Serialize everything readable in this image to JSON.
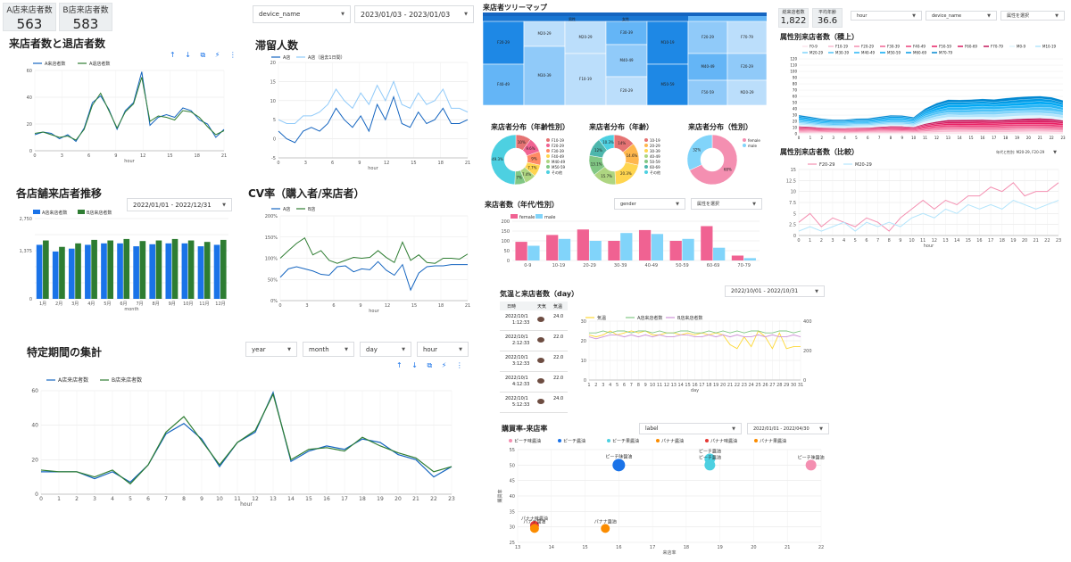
{
  "kpis": [
    {
      "label": "A店来店者数",
      "value": "563"
    },
    {
      "label": "B店来店者数",
      "value": "583"
    }
  ],
  "kpis_right": [
    {
      "label": "総来店者数",
      "value": "1,822"
    },
    {
      "label": "平均年齢",
      "value": "36.6"
    }
  ],
  "filters": {
    "device": "device_name",
    "date1": "2023/01/03 - 2023/01/03",
    "date2": "2022/01/01 - 2022/12/31",
    "year": "year",
    "month": "month",
    "day": "day",
    "hour": "hour",
    "right_hour": "hour",
    "right_device": "device_name",
    "right_attr": "属性を選択",
    "gender": "gender",
    "attr_sel": "属性を選択",
    "weather_date": "2022/10/01 - 2022/10/31",
    "label": "label",
    "buy_date": "2022/01/01 - 2022/04/30",
    "compare_sel": "年代と性別: M20-29, F20-29"
  },
  "titles": {
    "visits": "来店者数と退店者数",
    "stay": "滞留人数",
    "store_trend": "各店舗来店者推移",
    "cv": "CV率（購入者/来店者）",
    "period": "特定期間の集計",
    "treemap": "来店者ツリーマップ",
    "dist_gen": "来店者分布（年齢性別）",
    "dist_age": "来店者分布（年齢）",
    "dist_sex": "来店者分布（性別）",
    "age_sex_bar": "来店者数（年代/性別）",
    "weather": "気温と来店者数（day）",
    "buy": "購買率-来店率",
    "attr_hourly": "属性別来店者数（積上）",
    "attr_compare": "属性別来店者数（比較）"
  },
  "icons_row": "↑ ↓ ⧉ ⚡ ⋮",
  "charts": [
    {
      "id": "visits",
      "type": "line",
      "x": [
        0,
        1,
        2,
        3,
        4,
        5,
        6,
        7,
        8,
        9,
        10,
        11,
        12,
        13,
        14,
        15,
        16,
        17,
        18,
        19,
        20,
        21,
        22,
        23
      ],
      "xticks": [
        "0",
        "3",
        "6",
        "9",
        "12",
        "15",
        "18",
        "21"
      ],
      "ylim": [
        0,
        60
      ],
      "yticks": [
        "0",
        "20",
        "40",
        "60"
      ],
      "xlabel": "hour",
      "series": [
        {
          "name": "A来店者数",
          "color": "#1565c0",
          "values": [
            12,
            14,
            13,
            9,
            12,
            7,
            17,
            36,
            41,
            31,
            16,
            30,
            36,
            59,
            19,
            25,
            27,
            25,
            32,
            30,
            23,
            20,
            10,
            16
          ]
        },
        {
          "name": "A退店者数",
          "color": "#2e7d32",
          "values": [
            13,
            14,
            12,
            10,
            11,
            8,
            16,
            34,
            43,
            30,
            17,
            29,
            35,
            55,
            22,
            26,
            25,
            23,
            30,
            29,
            25,
            18,
            12,
            15
          ]
        }
      ]
    },
    {
      "id": "stay",
      "type": "line",
      "x": [
        0,
        1,
        2,
        3,
        4,
        5,
        6,
        7,
        8,
        9,
        10,
        11,
        12,
        13,
        14,
        15,
        16,
        17,
        18,
        19,
        20,
        21,
        22,
        23
      ],
      "xticks": [
        "0",
        "3",
        "6",
        "9",
        "12",
        "15",
        "18",
        "21"
      ],
      "ylim": [
        -5,
        20
      ],
      "yticks": [
        "-5",
        "0",
        "5",
        "10",
        "15",
        "20"
      ],
      "xlabel": "hour",
      "series": [
        {
          "name": "A店",
          "color": "#1565c0",
          "values": [
            2,
            0,
            -1,
            2,
            3,
            2,
            4,
            8,
            5,
            3,
            6,
            2,
            9,
            5,
            11,
            4,
            3,
            7,
            4,
            5,
            8,
            4,
            4,
            5
          ]
        },
        {
          "name": "A店（過去1日間）",
          "color": "#90caf9",
          "values": [
            5,
            4,
            4,
            6,
            6,
            7,
            9,
            13,
            10,
            8,
            12,
            9,
            14,
            10,
            15,
            9,
            8,
            12,
            9,
            10,
            13,
            8,
            8,
            7
          ]
        }
      ]
    },
    {
      "id": "store",
      "type": "bar",
      "categories": [
        "1月",
        "2月",
        "3月",
        "4月",
        "5月",
        "6月",
        "7月",
        "8月",
        "9月",
        "10月",
        "11月",
        "12月"
      ],
      "ylim": [
        0,
        2750
      ],
      "yticks": [
        "0",
        "",
        "",
        "1,375",
        "",
        "2,750"
      ],
      "xlabel": "month",
      "series": [
        {
          "name": "A店来店者数",
          "color": "#1a73e8",
          "values": [
            1850,
            1620,
            1720,
            1850,
            1900,
            1900,
            1800,
            1870,
            1900,
            1900,
            1800,
            1850
          ]
        },
        {
          "name": "B店来店者数",
          "color": "#2e7d32",
          "values": [
            2000,
            1780,
            1900,
            2020,
            2000,
            2050,
            1980,
            2000,
            2050,
            2000,
            1950,
            2020
          ]
        }
      ]
    },
    {
      "id": "cv",
      "type": "line",
      "x": [
        0,
        1,
        2,
        3,
        4,
        5,
        6,
        7,
        8,
        9,
        10,
        11,
        12,
        13,
        14,
        15,
        16,
        17,
        18,
        19,
        20,
        21,
        22,
        23
      ],
      "xticks": [
        "0",
        "3",
        "6",
        "9",
        "12",
        "15",
        "18",
        "21"
      ],
      "ylim": [
        0,
        200
      ],
      "yticks": [
        "0%",
        "50%",
        "100%",
        "150%",
        "200%"
      ],
      "xlabel": "hour",
      "series": [
        {
          "name": "A店",
          "color": "#1565c0",
          "values": [
            55,
            75,
            80,
            75,
            70,
            62,
            60,
            80,
            82,
            68,
            75,
            73,
            92,
            72,
            60,
            85,
            25,
            65,
            80,
            82,
            82,
            85,
            85,
            85
          ]
        },
        {
          "name": "B店",
          "color": "#2e7d32",
          "values": [
            100,
            118,
            135,
            148,
            108,
            118,
            95,
            88,
            95,
            102,
            100,
            102,
            118,
            102,
            90,
            138,
            95,
            108,
            90,
            88,
            100,
            100,
            98,
            110
          ]
        }
      ]
    },
    {
      "id": "period",
      "type": "line",
      "x": [
        0,
        1,
        2,
        3,
        4,
        5,
        6,
        7,
        8,
        9,
        10,
        11,
        12,
        13,
        14,
        15,
        16,
        17,
        18,
        19,
        20,
        21,
        22,
        23
      ],
      "xticks": [
        "0",
        "1",
        "2",
        "3",
        "4",
        "5",
        "6",
        "7",
        "8",
        "9",
        "10",
        "11",
        "12",
        "13",
        "14",
        "15",
        "16",
        "17",
        "18",
        "19",
        "20",
        "21",
        "22",
        "23"
      ],
      "ylim": [
        0,
        60
      ],
      "yticks": [
        "0",
        "20",
        "40",
        "60"
      ],
      "xlabel": "hour",
      "series": [
        {
          "name": "A店来店者数",
          "color": "#1565c0",
          "values": [
            13,
            13,
            13,
            9,
            13,
            7,
            17,
            35,
            41,
            32,
            16,
            30,
            36,
            59,
            19,
            25,
            28,
            26,
            32,
            30,
            23,
            20,
            10,
            16
          ]
        },
        {
          "name": "B店来店者数",
          "color": "#2e7d32",
          "values": [
            14,
            13,
            13,
            10,
            14,
            6,
            17,
            36,
            45,
            31,
            17,
            30,
            37,
            58,
            20,
            26,
            27,
            25,
            33,
            28,
            24,
            21,
            13,
            16
          ]
        }
      ]
    },
    {
      "id": "agesex",
      "type": "bar",
      "categories": [
        "0-9",
        "10-19",
        "20-29",
        "30-39",
        "40-49",
        "50-59",
        "60-69",
        "70-79"
      ],
      "ylim": [
        0,
        200
      ],
      "yticks": [
        "0",
        "50",
        "100",
        "150",
        "200"
      ],
      "xlabel": "",
      "series": [
        {
          "name": "female",
          "color": "#f06292",
          "values": [
            95,
            130,
            158,
            100,
            155,
            100,
            175,
            25
          ]
        },
        {
          "name": "male",
          "color": "#81d4fa",
          "values": [
            75,
            110,
            100,
            140,
            135,
            110,
            65,
            12
          ]
        }
      ]
    },
    {
      "id": "weather",
      "type": "line",
      "x": [
        1,
        2,
        3,
        4,
        5,
        6,
        7,
        8,
        9,
        10,
        11,
        12,
        13,
        14,
        15,
        16,
        17,
        18,
        19,
        20,
        21,
        22,
        23,
        24,
        25,
        26,
        27,
        28,
        29,
        30,
        31
      ],
      "xticks": [
        "1",
        "2",
        "3",
        "4",
        "5",
        "6",
        "7",
        "8",
        "9",
        "10",
        "11",
        "12",
        "13",
        "14",
        "15",
        "16",
        "17",
        "18",
        "19",
        "20",
        "21",
        "22",
        "23",
        "24",
        "25",
        "26",
        "27",
        "28",
        "29",
        "30",
        "31"
      ],
      "ylim": [
        0,
        30
      ],
      "yticks": [
        "0",
        "10",
        "20",
        "30"
      ],
      "xlabel": "day",
      "series": [
        {
          "name": "気温",
          "color": "#fdd835",
          "values": [
            23,
            22,
            23,
            25,
            23,
            24,
            25,
            24,
            25,
            23,
            23,
            24,
            24,
            23,
            24,
            23,
            24,
            23,
            24,
            23,
            18,
            16,
            22,
            17,
            25,
            22,
            16,
            24,
            16,
            17,
            17
          ]
        },
        {
          "name": "A店来店者数",
          "color": "#81c784",
          "values": [
            24,
            24,
            25,
            24,
            25,
            25,
            24,
            25,
            25,
            24,
            25,
            24,
            24,
            25,
            25,
            24,
            24,
            25,
            24,
            25,
            24,
            25,
            24,
            25,
            25,
            24,
            24,
            25,
            25,
            24,
            25
          ]
        },
        {
          "name": "B店来店者数",
          "color": "#ce93d8",
          "values": [
            22,
            21,
            22,
            23,
            23,
            22,
            23,
            22,
            23,
            22,
            23,
            22,
            22,
            23,
            23,
            22,
            22,
            23,
            22,
            23,
            22,
            23,
            22,
            22,
            23,
            22,
            23,
            22,
            22,
            23,
            22
          ]
        }
      ]
    },
    {
      "id": "compare",
      "type": "line",
      "x": [
        0,
        1,
        2,
        3,
        4,
        5,
        6,
        7,
        8,
        9,
        10,
        11,
        12,
        13,
        14,
        15,
        16,
        17,
        18,
        19,
        20,
        21,
        22,
        23
      ],
      "xticks": [
        "0",
        "1",
        "2",
        "3",
        "4",
        "5",
        "6",
        "7",
        "8",
        "9",
        "10",
        "11",
        "12",
        "13",
        "14",
        "15",
        "16",
        "17",
        "18",
        "19",
        "20",
        "21",
        "22",
        "23"
      ],
      "ylim": [
        0,
        15
      ],
      "yticks": [
        "0",
        "2.5",
        "5",
        "7.5",
        "10",
        "12.5",
        "15"
      ],
      "xlabel": "hour",
      "series": [
        {
          "name": "F20-29",
          "color": "#f48fb1",
          "values": [
            3,
            5,
            2,
            4,
            3,
            2,
            4,
            3,
            1,
            4,
            6,
            8,
            6,
            8,
            7,
            9,
            9,
            11,
            10,
            12,
            9,
            10,
            10,
            12
          ]
        },
        {
          "name": "M20-29",
          "color": "#b3e5fc",
          "values": [
            1,
            2,
            1,
            2,
            3,
            1,
            3,
            2,
            3,
            2,
            4,
            5,
            4,
            6,
            5,
            7,
            6,
            7,
            6,
            8,
            7,
            6,
            7,
            8
          ]
        }
      ]
    },
    {
      "id": "buy",
      "type": "scatter",
      "xlim": [
        13,
        22
      ],
      "ylim": [
        25,
        55
      ],
      "xticks": [
        "13",
        "14",
        "15",
        "16",
        "17",
        "18",
        "19",
        "20",
        "21",
        "22"
      ],
      "yticks": [
        "25",
        "30",
        "35",
        "40",
        "45",
        "50",
        "55"
      ],
      "xlabel": "来店率",
      "ylabel": "購買率",
      "points": [
        {
          "name": "ピーチ味醤油",
          "x": 16,
          "y": 50,
          "r": 7,
          "color": "#1a73e8"
        },
        {
          "name": "ピーチ醤油",
          "x": 18.7,
          "y": 52,
          "r": 6,
          "color": "#4dd0e1"
        },
        {
          "name": "ピーチ醤油",
          "x": 18.7,
          "y": 50,
          "r": 6,
          "color": "#4dd0e1"
        },
        {
          "name": "ピーチ味醤油",
          "x": 21.7,
          "y": 50,
          "r": 6,
          "color": "#f48fb1"
        },
        {
          "name": "パナナ味醤油",
          "x": 13.5,
          "y": 30.5,
          "r": 5,
          "color": "#e53935"
        },
        {
          "name": "パナナ醤油",
          "x": 13.5,
          "y": 29.5,
          "r": 5,
          "color": "#fb8c00"
        },
        {
          "name": "パナナ醤油",
          "x": 15.6,
          "y": 29.5,
          "r": 5,
          "color": "#fb8c00"
        }
      ],
      "legend": [
        "ピーチ味醤油",
        "ピーチ醤油",
        "ピーチ果醤油",
        "パナナ醤油",
        "パナナ味醤油",
        "パナナ果醤油"
      ]
    }
  ],
  "treemap": {
    "top": [
      "男性",
      "女性"
    ],
    "cells": [
      "F20-29",
      "F40-49",
      "M20-29",
      "M30-39",
      "M20-29",
      "F10-19",
      "F30-39",
      "M40-49",
      "F20-29",
      "M10-19",
      "M50-59",
      "F20-29",
      "F70-79",
      "M40-49",
      "F20-29",
      "F50-59",
      "M20-29",
      "M10-19",
      "M70-79",
      "F60-69",
      "M60-69",
      "F0-9",
      "M50-59",
      "F20-29"
    ]
  },
  "donuts": [
    {
      "title": "来店者分布（年齢性別）",
      "slices": [
        {
          "name": "F10-19",
          "v": 10,
          "color": "#e57373"
        },
        {
          "name": "F20-29",
          "v": 9.6,
          "color": "#f06292"
        },
        {
          "name": "F30-39",
          "v": 9,
          "color": "#ff8a65"
        },
        {
          "name": "F40-49",
          "v": 7.7,
          "color": "#ffd54f"
        },
        {
          "name": "M40-49",
          "v": 7.4,
          "color": "#aed581"
        },
        {
          "name": "M50-59",
          "v": 7,
          "color": "#81c784"
        },
        {
          "name": "その他",
          "v": 49.3,
          "color": "#4dd0e1"
        }
      ]
    },
    {
      "title": "来店者分布（年齢）",
      "slices": [
        {
          "name": "10-19",
          "v": 14,
          "color": "#e57373"
        },
        {
          "name": "20-29",
          "v": 14.6,
          "color": "#ffb74d"
        },
        {
          "name": "30-39",
          "v": 20.3,
          "color": "#ffd54f"
        },
        {
          "name": "40-49",
          "v": 15.7,
          "color": "#aed581"
        },
        {
          "name": "50-59",
          "v": 13.1,
          "color": "#81c784"
        },
        {
          "name": "60-69",
          "v": 12,
          "color": "#4db6ac"
        },
        {
          "name": "その他",
          "v": 10.3,
          "color": "#4dd0e1"
        }
      ]
    },
    {
      "title": "来店者分布（性別）",
      "slices": [
        {
          "name": "female",
          "v": 68,
          "color": "#f48fb1"
        },
        {
          "name": "male",
          "v": 32,
          "color": "#81d4fa"
        }
      ]
    }
  ],
  "weather_rows": [
    {
      "date": "2022/10/1",
      "time": "1:12:33",
      "temp": "24.0"
    },
    {
      "date": "2022/10/1",
      "time": "2:12:33",
      "temp": "22.0"
    },
    {
      "date": "2022/10/1",
      "time": "3:12:33",
      "temp": "22.0"
    },
    {
      "date": "2022/10/1",
      "time": "4:12:33",
      "temp": "22.0"
    },
    {
      "date": "2022/10/1",
      "time": "5:12:33",
      "temp": "24.0"
    }
  ],
  "weather_head": [
    "日時",
    "天気",
    "気温"
  ],
  "stack_legend": [
    "F0-9",
    "F10-19",
    "F20-29",
    "F30-39",
    "F40-49",
    "F50-59",
    "F60-69",
    "F70-79",
    "M0-9",
    "M10-19",
    "M20-29",
    "M30-39",
    "M40-49",
    "M50-59",
    "M60-69",
    "M70-79"
  ],
  "stack_y": [
    "0",
    "10",
    "20",
    "30",
    "40",
    "50",
    "60",
    "70",
    "80",
    "90",
    "100",
    "110",
    "120"
  ]
}
